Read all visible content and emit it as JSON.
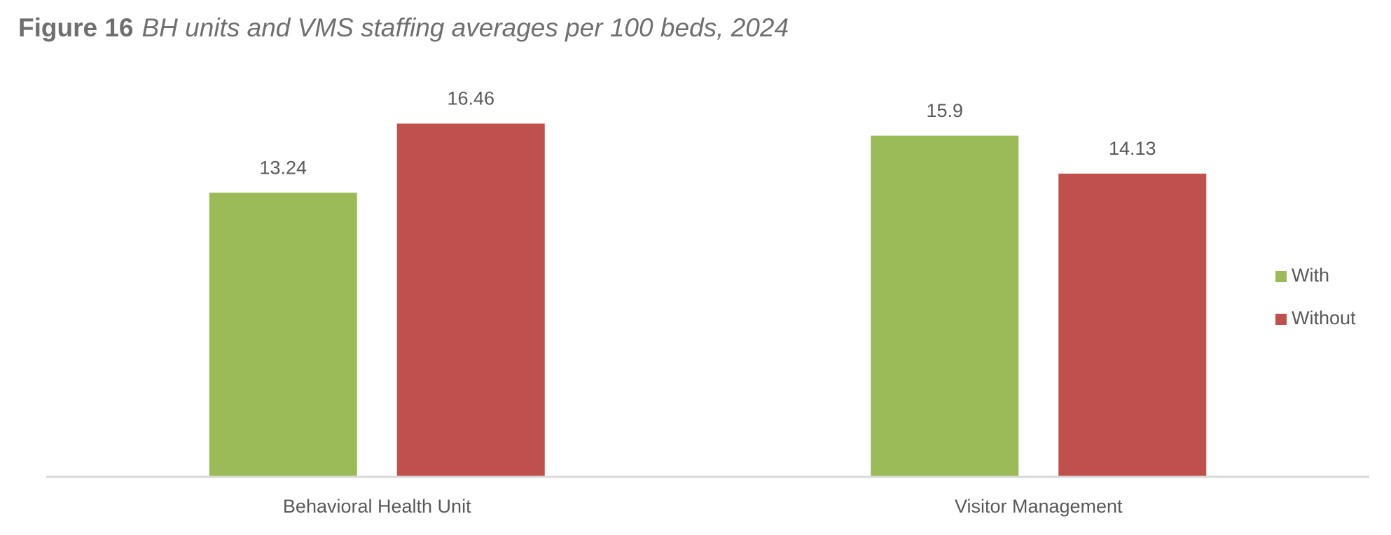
{
  "chart_data": {
    "type": "bar",
    "figure_label": "Figure 16",
    "title": "BH units and VMS staffing averages per 100 beds, 2024",
    "categories": [
      "Behavioral Health Unit",
      "Visitor Management"
    ],
    "series": [
      {
        "name": "With",
        "color": "#9bbb59",
        "values": [
          13.24,
          15.9
        ]
      },
      {
        "name": "Without",
        "color": "#c0504d",
        "values": [
          16.46,
          14.13
        ]
      }
    ],
    "ylim": [
      0,
      20
    ],
    "legend": "right"
  }
}
